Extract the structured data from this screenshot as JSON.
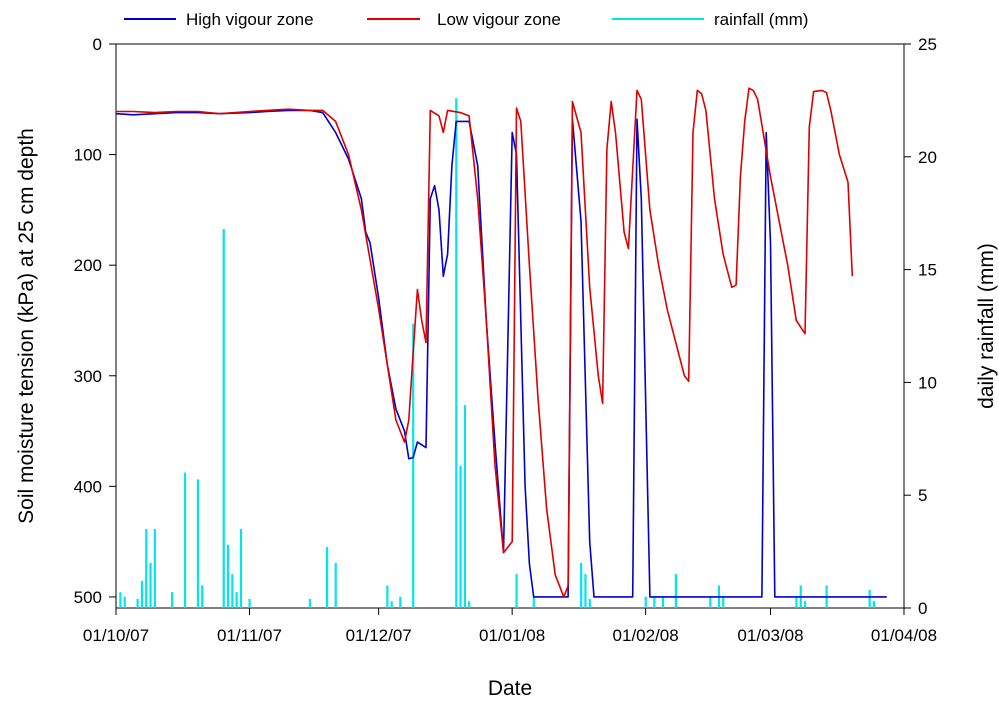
{
  "chart_data": {
    "type": "line",
    "legend_position": "top",
    "grid": false,
    "xlabel": "Date",
    "ylabel_left": "Soil moisture tension (kPa) at 25 cm depth",
    "ylabel_right": "daily rainfall (mm)",
    "x_range": [
      "2007-10-01",
      "2008-04-01"
    ],
    "x_ticks": [
      {
        "date": "2007-10-01",
        "label": "01/10/07"
      },
      {
        "date": "2007-11-01",
        "label": "01/11/07"
      },
      {
        "date": "2007-12-01",
        "label": "01/12/07"
      },
      {
        "date": "2008-01-01",
        "label": "01/01/08"
      },
      {
        "date": "2008-02-01",
        "label": "01/02/08"
      },
      {
        "date": "2008-03-01",
        "label": "01/03/08"
      },
      {
        "date": "2008-04-01",
        "label": "01/04/08"
      }
    ],
    "y_left_range": [
      0,
      510
    ],
    "y_left_inverted": true,
    "y_left_ticks": [
      0,
      100,
      200,
      300,
      400,
      500
    ],
    "y_right_range": [
      0,
      25
    ],
    "y_right_ticks": [
      0,
      5,
      10,
      15,
      20,
      25
    ],
    "series": [
      {
        "name": "High vigour zone",
        "color": "#0000cc",
        "axis": "left",
        "points": [
          [
            "2007-10-01",
            63
          ],
          [
            "2007-10-05",
            64
          ],
          [
            "2007-10-10",
            63
          ],
          [
            "2007-10-15",
            62
          ],
          [
            "2007-10-20",
            62
          ],
          [
            "2007-10-25",
            63
          ],
          [
            "2007-11-01",
            62
          ],
          [
            "2007-11-05",
            61
          ],
          [
            "2007-11-10",
            60
          ],
          [
            "2007-11-15",
            60
          ],
          [
            "2007-11-18",
            62
          ],
          [
            "2007-11-21",
            80
          ],
          [
            "2007-11-24",
            104
          ],
          [
            "2007-11-27",
            140
          ],
          [
            "2007-11-28",
            170
          ],
          [
            "2007-11-29",
            180
          ],
          [
            "2007-12-01",
            230
          ],
          [
            "2007-12-03",
            290
          ],
          [
            "2007-12-05",
            330
          ],
          [
            "2007-12-07",
            350
          ],
          [
            "2007-12-08",
            375
          ],
          [
            "2007-12-09",
            374
          ],
          [
            "2007-12-10",
            360
          ],
          [
            "2007-12-12",
            365
          ],
          [
            "2007-12-13",
            140
          ],
          [
            "2007-12-14",
            128
          ],
          [
            "2007-12-15",
            150
          ],
          [
            "2007-12-16",
            210
          ],
          [
            "2007-12-17",
            190
          ],
          [
            "2007-12-18",
            110
          ],
          [
            "2007-12-19",
            70
          ],
          [
            "2007-12-22",
            70
          ],
          [
            "2007-12-24",
            110
          ],
          [
            "2007-12-26",
            250
          ],
          [
            "2007-12-28",
            360
          ],
          [
            "2007-12-30",
            460
          ],
          [
            "2008-01-01",
            80
          ],
          [
            "2008-01-02",
            100
          ],
          [
            "2008-01-04",
            400
          ],
          [
            "2008-01-05",
            470
          ],
          [
            "2008-01-06",
            500
          ],
          [
            "2008-01-14",
            500
          ],
          [
            "2008-01-15",
            68
          ],
          [
            "2008-01-17",
            160
          ],
          [
            "2008-01-19",
            450
          ],
          [
            "2008-01-20",
            500
          ],
          [
            "2008-01-29",
            500
          ],
          [
            "2008-01-30",
            68
          ],
          [
            "2008-01-31",
            140
          ],
          [
            "2008-02-02",
            500
          ],
          [
            "2008-02-28",
            500
          ],
          [
            "2008-02-29",
            80
          ],
          [
            "2008-03-01",
            180
          ],
          [
            "2008-03-02",
            500
          ],
          [
            "2008-03-28",
            500
          ]
        ]
      },
      {
        "name": "Low vigour zone",
        "color": "#dd0000",
        "axis": "left",
        "points": [
          [
            "2007-10-01",
            61
          ],
          [
            "2007-10-05",
            61
          ],
          [
            "2007-10-10",
            62
          ],
          [
            "2007-10-15",
            61
          ],
          [
            "2007-10-20",
            61
          ],
          [
            "2007-10-25",
            63
          ],
          [
            "2007-11-01",
            61
          ],
          [
            "2007-11-05",
            60
          ],
          [
            "2007-11-10",
            59
          ],
          [
            "2007-11-15",
            60
          ],
          [
            "2007-11-18",
            60
          ],
          [
            "2007-11-21",
            70
          ],
          [
            "2007-11-24",
            100
          ],
          [
            "2007-11-27",
            150
          ],
          [
            "2007-12-01",
            240
          ],
          [
            "2007-12-03",
            290
          ],
          [
            "2007-12-05",
            340
          ],
          [
            "2007-12-07",
            360
          ],
          [
            "2007-12-08",
            340
          ],
          [
            "2007-12-09",
            280
          ],
          [
            "2007-12-10",
            222
          ],
          [
            "2007-12-11",
            250
          ],
          [
            "2007-12-12",
            270
          ],
          [
            "2007-12-13",
            60
          ],
          [
            "2007-12-15",
            65
          ],
          [
            "2007-12-16",
            80
          ],
          [
            "2007-12-17",
            60
          ],
          [
            "2007-12-20",
            62
          ],
          [
            "2007-12-22",
            65
          ],
          [
            "2007-12-24",
            140
          ],
          [
            "2007-12-26",
            250
          ],
          [
            "2007-12-28",
            380
          ],
          [
            "2007-12-30",
            460
          ],
          [
            "2008-01-01",
            450
          ],
          [
            "2008-01-02",
            58
          ],
          [
            "2008-01-03",
            70
          ],
          [
            "2008-01-05",
            200
          ],
          [
            "2008-01-07",
            320
          ],
          [
            "2008-01-09",
            420
          ],
          [
            "2008-01-11",
            480
          ],
          [
            "2008-01-13",
            500
          ],
          [
            "2008-01-14",
            490
          ],
          [
            "2008-01-15",
            52
          ],
          [
            "2008-01-17",
            80
          ],
          [
            "2008-01-19",
            220
          ],
          [
            "2008-01-21",
            300
          ],
          [
            "2008-01-22",
            325
          ],
          [
            "2008-01-23",
            95
          ],
          [
            "2008-01-24",
            52
          ],
          [
            "2008-01-25",
            80
          ],
          [
            "2008-01-27",
            170
          ],
          [
            "2008-01-28",
            185
          ],
          [
            "2008-01-30",
            42
          ],
          [
            "2008-01-31",
            50
          ],
          [
            "2008-02-02",
            150
          ],
          [
            "2008-02-04",
            200
          ],
          [
            "2008-02-06",
            240
          ],
          [
            "2008-02-08",
            270
          ],
          [
            "2008-02-10",
            300
          ],
          [
            "2008-02-11",
            305
          ],
          [
            "2008-02-12",
            80
          ],
          [
            "2008-02-13",
            42
          ],
          [
            "2008-02-14",
            45
          ],
          [
            "2008-02-15",
            60
          ],
          [
            "2008-02-17",
            140
          ],
          [
            "2008-02-19",
            190
          ],
          [
            "2008-02-21",
            220
          ],
          [
            "2008-02-22",
            218
          ],
          [
            "2008-02-23",
            120
          ],
          [
            "2008-02-24",
            70
          ],
          [
            "2008-02-25",
            40
          ],
          [
            "2008-02-26",
            42
          ],
          [
            "2008-02-27",
            50
          ],
          [
            "2008-03-01",
            120
          ],
          [
            "2008-03-03",
            160
          ],
          [
            "2008-03-05",
            200
          ],
          [
            "2008-03-07",
            250
          ],
          [
            "2008-03-09",
            262
          ],
          [
            "2008-03-10",
            75
          ],
          [
            "2008-03-11",
            43
          ],
          [
            "2008-03-13",
            42
          ],
          [
            "2008-03-14",
            44
          ],
          [
            "2008-03-15",
            60
          ],
          [
            "2008-03-17",
            100
          ],
          [
            "2008-03-19",
            125
          ],
          [
            "2008-03-20",
            210
          ]
        ]
      },
      {
        "name": "rainfall (mm)",
        "color": "#00e5ee",
        "axis": "right",
        "kind": "bar",
        "points": [
          [
            "2007-10-02",
            0.7
          ],
          [
            "2007-10-03",
            0.5
          ],
          [
            "2007-10-06",
            0.4
          ],
          [
            "2007-10-07",
            1.2
          ],
          [
            "2007-10-08",
            3.5
          ],
          [
            "2007-10-09",
            2.0
          ],
          [
            "2007-10-10",
            3.5
          ],
          [
            "2007-10-14",
            0.7
          ],
          [
            "2007-10-17",
            6.0
          ],
          [
            "2007-10-20",
            5.7
          ],
          [
            "2007-10-21",
            1.0
          ],
          [
            "2007-10-26",
            16.8
          ],
          [
            "2007-10-27",
            2.8
          ],
          [
            "2007-10-28",
            1.5
          ],
          [
            "2007-10-29",
            0.7
          ],
          [
            "2007-10-30",
            3.5
          ],
          [
            "2007-11-01",
            0.4
          ],
          [
            "2007-11-15",
            0.4
          ],
          [
            "2007-11-19",
            2.7
          ],
          [
            "2007-11-21",
            2.0
          ],
          [
            "2007-12-03",
            1.0
          ],
          [
            "2007-12-04",
            0.3
          ],
          [
            "2007-12-06",
            0.5
          ],
          [
            "2007-12-09",
            12.6
          ],
          [
            "2007-12-19",
            22.6
          ],
          [
            "2007-12-20",
            6.3
          ],
          [
            "2007-12-21",
            9.0
          ],
          [
            "2007-12-22",
            0.3
          ],
          [
            "2008-01-02",
            1.5
          ],
          [
            "2008-01-06",
            0.5
          ],
          [
            "2008-01-17",
            2.0
          ],
          [
            "2008-01-18",
            1.5
          ],
          [
            "2008-01-19",
            0.4
          ],
          [
            "2008-02-01",
            0.5
          ],
          [
            "2008-02-03",
            0.5
          ],
          [
            "2008-02-05",
            0.5
          ],
          [
            "2008-02-08",
            1.5
          ],
          [
            "2008-02-16",
            0.5
          ],
          [
            "2008-02-18",
            1.0
          ],
          [
            "2008-02-19",
            0.5
          ],
          [
            "2008-03-07",
            0.5
          ],
          [
            "2008-03-08",
            1.0
          ],
          [
            "2008-03-09",
            0.3
          ],
          [
            "2008-03-14",
            1.0
          ],
          [
            "2008-03-24",
            0.8
          ],
          [
            "2008-03-25",
            0.3
          ]
        ]
      }
    ]
  }
}
